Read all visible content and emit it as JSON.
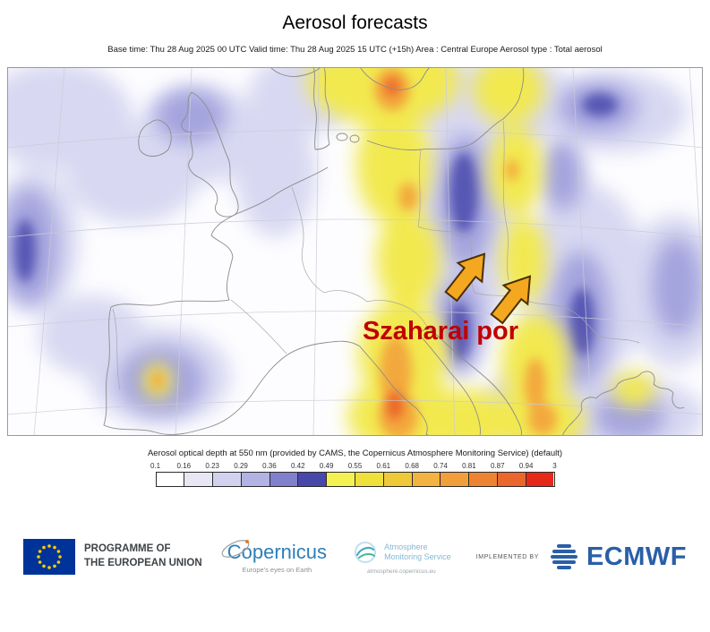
{
  "header": {
    "title": "Aerosol forecasts",
    "meta": "Base time: Thu 28 Aug 2025 00 UTC Valid time: Thu 28 Aug 2025 15 UTC (+15h) Area : Central Europe Aerosol type : Total aerosol"
  },
  "map": {
    "annotation": "Szaharai por",
    "annotation_color": "#c00000",
    "arrow_color": "#f3a81f"
  },
  "legend": {
    "title": "Aerosol optical depth at 550 nm (provided by CAMS, the Copernicus Atmosphere Monitoring Service) (default)",
    "ticks": [
      "0.1",
      "0.16",
      "0.23",
      "0.29",
      "0.36",
      "0.42",
      "0.49",
      "0.55",
      "0.61",
      "0.68",
      "0.74",
      "0.81",
      "0.87",
      "0.94",
      "3"
    ],
    "colors": [
      "#ffffff",
      "#e8e8f5",
      "#d2d2ee",
      "#b2b2e3",
      "#8080cc",
      "#4848aa",
      "#f4f152",
      "#f0e03c",
      "#eeca38",
      "#f2b340",
      "#f29e3a",
      "#ee8432",
      "#ea662c",
      "#e62819"
    ]
  },
  "footer": {
    "eu": {
      "line1": "PROGRAMME OF",
      "line2": "THE EUROPEAN UNION"
    },
    "copernicus": {
      "name": "Copernicus",
      "tagline": "Europe's eyes on Earth"
    },
    "ams": {
      "line1": "Atmosphere",
      "line2": "Monitoring Service",
      "url": "atmosphere.copernicus.eu"
    },
    "implemented_by": "IMPLEMENTED BY",
    "ecmwf": {
      "name": "ECMWF"
    }
  },
  "chart_data": {
    "type": "heatmap",
    "title": "Aerosol forecasts",
    "variable": "Aerosol optical depth at 550 nm",
    "base_time": "Thu 28 Aug 2025 00 UTC",
    "valid_time": "Thu 28 Aug 2025 15 UTC (+15h)",
    "area": "Central Europe",
    "aerosol_type": "Total aerosol",
    "scale_ticks": [
      0.1,
      0.16,
      0.23,
      0.29,
      0.36,
      0.42,
      0.49,
      0.55,
      0.61,
      0.68,
      0.74,
      0.81,
      0.87,
      0.94,
      3
    ],
    "annotation": "Szaharai por"
  }
}
